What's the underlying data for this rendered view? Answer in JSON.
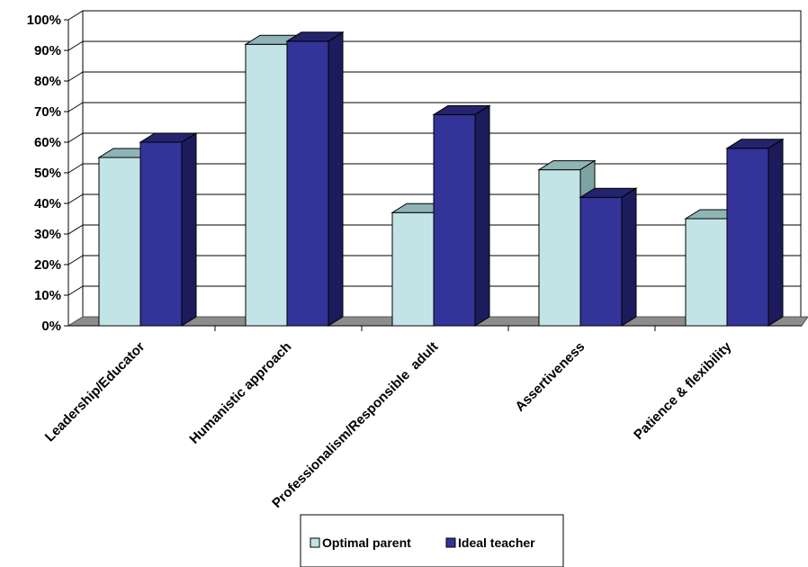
{
  "chart_data": {
    "type": "bar",
    "title": "",
    "xlabel": "",
    "ylabel": "",
    "ylim": [
      0,
      100
    ],
    "y_ticks": [
      "0%",
      "10%",
      "20%",
      "30%",
      "40%",
      "50%",
      "60%",
      "70%",
      "80%",
      "90%",
      "100%"
    ],
    "categories": [
      "Leadership/Educator",
      "Humanistic approach",
      "Professionalism/Responsible  adult",
      "Assertiveness",
      "Patience & flexibility"
    ],
    "series": [
      {
        "name": "Optimal parent",
        "values": [
          55,
          92,
          37,
          51,
          35
        ],
        "color": "#c3e4e6",
        "top_color": "#8eb4b5",
        "side_color": "#7ea3a4"
      },
      {
        "name": "Ideal teacher",
        "values": [
          60,
          93,
          69,
          42,
          58
        ],
        "color": "#333399",
        "top_color": "#24246e",
        "side_color": "#1c1c5c"
      }
    ],
    "grid": true,
    "floor_color": "#8c8c8c",
    "legend_position": "bottom",
    "style": "3d-clustered-column"
  }
}
